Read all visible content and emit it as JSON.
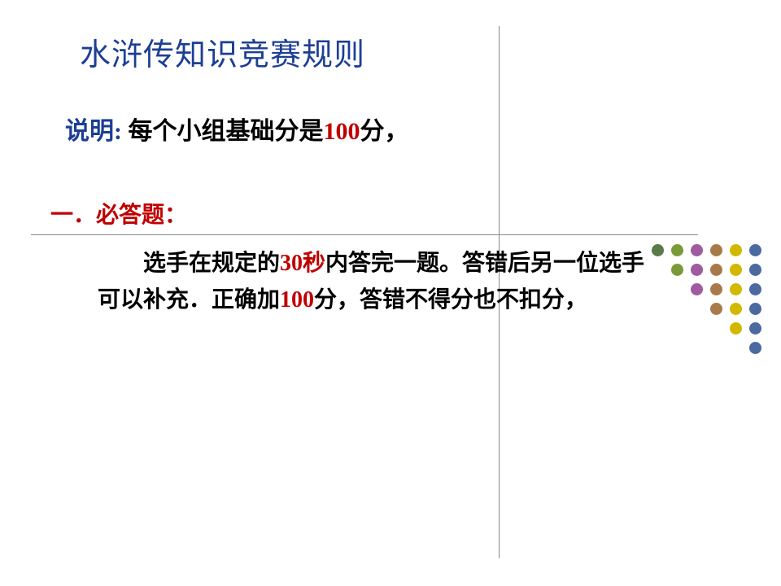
{
  "title": "水浒传知识竞赛规则",
  "note_label": "说明:",
  "note_before": " 每个小组基础分是",
  "note_num": "100",
  "note_after": "分，",
  "section": "一．必答题：",
  "body_part1": "选手在规定的",
  "body_red1": "30秒",
  "body_part2": "内答完一题。答错后另一位选手可以补充．正确加",
  "body_red2": "100",
  "body_part3": "分，答错不得分也不扣分，",
  "dots": {
    "colors": [
      "#5a7a4a",
      "#7a9a3a",
      "#a05aa0",
      "#a87a4a",
      "#d2b800",
      "#4a6aa0"
    ],
    "rows": [
      6,
      5,
      4,
      3,
      2,
      1
    ]
  }
}
